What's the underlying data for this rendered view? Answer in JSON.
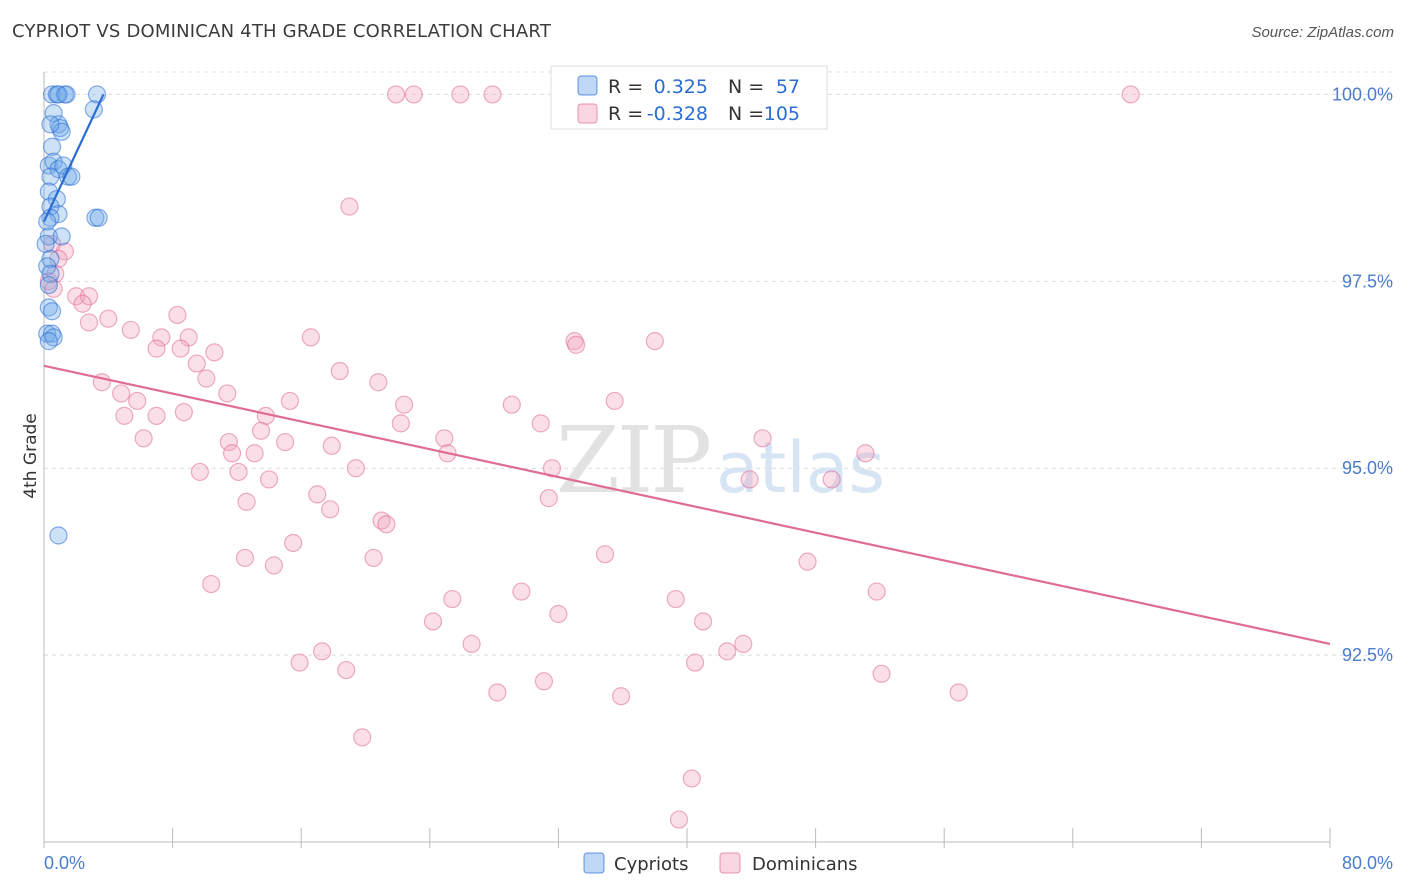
{
  "header": {
    "title": "CYPRIOT VS DOMINICAN 4TH GRADE CORRELATION CHART",
    "source": "Source: ZipAtlas.com"
  },
  "colors": {
    "cypriots": "#6fa8e8",
    "cypriots_line": "#2a6dd4",
    "dominicans": "#f2a3bd",
    "dominicans_line": "#e06b96",
    "tick_label": "#4a7cc9",
    "grid": "#dcdcdc"
  },
  "chart_data": {
    "type": "scatter",
    "title": "CYPRIOT VS DOMINICAN 4TH GRADE CORRELATION CHART",
    "xlabel": "",
    "ylabel": "4th Grade",
    "xlim": [
      0,
      80
    ],
    "ylim": [
      90.0,
      100.3
    ],
    "x_tick_labels": [
      "0.0%",
      "80.0%"
    ],
    "y_ticks": [
      92.5,
      95.0,
      97.5,
      100.0
    ],
    "y_tick_labels": [
      "92.5%",
      "95.0%",
      "97.5%",
      "100.0%"
    ],
    "grid": true,
    "legend_position": "top-center",
    "watermark": "ZIPatlas",
    "stats": [
      {
        "name": "Cypriots",
        "R": "0.325",
        "N": "57"
      },
      {
        "name": "Dominicans",
        "R": "-0.328",
        "N": "105"
      }
    ],
    "series": [
      {
        "name": "Cypriots",
        "trend": {
          "x": [
            0.0,
            3.7
          ],
          "y": [
            98.3,
            100.0
          ]
        },
        "points": [
          [
            0.5,
            100.0
          ],
          [
            0.8,
            100.0
          ],
          [
            1.3,
            100.0
          ],
          [
            1.4,
            100.0
          ],
          [
            0.9,
            100.0
          ],
          [
            3.3,
            100.0
          ],
          [
            3.1,
            99.8
          ],
          [
            0.6,
            99.75
          ],
          [
            0.9,
            99.6
          ],
          [
            1.0,
            99.55
          ],
          [
            1.1,
            99.5
          ],
          [
            0.4,
            99.6
          ],
          [
            0.5,
            99.3
          ],
          [
            0.3,
            99.05
          ],
          [
            0.6,
            99.1
          ],
          [
            0.9,
            99.0
          ],
          [
            1.2,
            99.05
          ],
          [
            1.5,
            98.9
          ],
          [
            1.7,
            98.9
          ],
          [
            0.4,
            98.9
          ],
          [
            0.3,
            98.7
          ],
          [
            0.8,
            98.6
          ],
          [
            0.4,
            98.5
          ],
          [
            0.9,
            98.4
          ],
          [
            0.4,
            98.35
          ],
          [
            0.2,
            98.3
          ],
          [
            3.2,
            98.35
          ],
          [
            3.4,
            98.35
          ],
          [
            0.3,
            98.1
          ],
          [
            0.1,
            98.0
          ],
          [
            1.1,
            98.1
          ],
          [
            0.4,
            97.8
          ],
          [
            0.2,
            97.7
          ],
          [
            0.4,
            97.6
          ],
          [
            0.3,
            97.45
          ],
          [
            0.3,
            97.15
          ],
          [
            0.5,
            97.1
          ],
          [
            0.2,
            96.8
          ],
          [
            0.5,
            96.8
          ],
          [
            0.6,
            96.75
          ],
          [
            0.3,
            96.7
          ],
          [
            0.9,
            94.1
          ]
        ]
      },
      {
        "name": "Dominicans",
        "trend": {
          "x": [
            0.0,
            80.0
          ],
          "y": [
            96.37,
            92.65
          ]
        },
        "points": [
          [
            21.9,
            100.0
          ],
          [
            23.0,
            100.0
          ],
          [
            25.9,
            100.0
          ],
          [
            27.9,
            100.0
          ],
          [
            67.6,
            100.0
          ],
          [
            19.0,
            98.5
          ],
          [
            0.5,
            98.0
          ],
          [
            1.3,
            97.9
          ],
          [
            0.9,
            97.8
          ],
          [
            0.7,
            97.6
          ],
          [
            0.3,
            97.5
          ],
          [
            0.6,
            97.4
          ],
          [
            2.0,
            97.3
          ],
          [
            2.8,
            97.3
          ],
          [
            2.4,
            97.2
          ],
          [
            8.3,
            97.05
          ],
          [
            2.8,
            96.95
          ],
          [
            4.0,
            97.0
          ],
          [
            5.4,
            96.85
          ],
          [
            7.3,
            96.75
          ],
          [
            9.0,
            96.75
          ],
          [
            16.6,
            96.75
          ],
          [
            7.0,
            96.6
          ],
          [
            8.5,
            96.6
          ],
          [
            10.6,
            96.55
          ],
          [
            33.0,
            96.7
          ],
          [
            33.1,
            96.65
          ],
          [
            38.0,
            96.7
          ],
          [
            9.5,
            96.4
          ],
          [
            18.4,
            96.3
          ],
          [
            20.8,
            96.15
          ],
          [
            10.1,
            96.2
          ],
          [
            3.6,
            96.15
          ],
          [
            11.4,
            96.0
          ],
          [
            4.8,
            96.0
          ],
          [
            5.8,
            95.9
          ],
          [
            15.3,
            95.9
          ],
          [
            22.4,
            95.85
          ],
          [
            29.1,
            95.85
          ],
          [
            35.5,
            95.9
          ],
          [
            8.7,
            95.75
          ],
          [
            5.0,
            95.7
          ],
          [
            7.0,
            95.7
          ],
          [
            13.8,
            95.7
          ],
          [
            22.2,
            95.6
          ],
          [
            30.9,
            95.6
          ],
          [
            13.5,
            95.5
          ],
          [
            6.2,
            95.4
          ],
          [
            24.9,
            95.4
          ],
          [
            44.7,
            95.4
          ],
          [
            11.5,
            95.35
          ],
          [
            15.0,
            95.35
          ],
          [
            17.9,
            95.3
          ],
          [
            11.7,
            95.2
          ],
          [
            13.1,
            95.2
          ],
          [
            25.1,
            95.2
          ],
          [
            51.1,
            95.2
          ],
          [
            19.4,
            95.0
          ],
          [
            31.6,
            95.0
          ],
          [
            9.7,
            94.95
          ],
          [
            12.1,
            94.95
          ],
          [
            14.0,
            94.85
          ],
          [
            43.9,
            94.85
          ],
          [
            49.0,
            94.85
          ],
          [
            17.0,
            94.65
          ],
          [
            31.4,
            94.6
          ],
          [
            12.6,
            94.55
          ],
          [
            17.8,
            94.45
          ],
          [
            21.0,
            94.3
          ],
          [
            21.3,
            94.25
          ],
          [
            15.5,
            94.0
          ],
          [
            12.5,
            93.8
          ],
          [
            20.5,
            93.8
          ],
          [
            34.9,
            93.85
          ],
          [
            47.5,
            93.75
          ],
          [
            14.3,
            93.7
          ],
          [
            10.4,
            93.45
          ],
          [
            29.7,
            93.35
          ],
          [
            25.4,
            93.25
          ],
          [
            39.3,
            93.25
          ],
          [
            51.8,
            93.35
          ],
          [
            32.0,
            93.05
          ],
          [
            24.2,
            92.95
          ],
          [
            41.0,
            92.95
          ],
          [
            26.6,
            92.65
          ],
          [
            43.5,
            92.65
          ],
          [
            17.3,
            92.55
          ],
          [
            42.5,
            92.55
          ],
          [
            15.9,
            92.4
          ],
          [
            40.5,
            92.4
          ],
          [
            18.8,
            92.3
          ],
          [
            52.1,
            92.25
          ],
          [
            31.1,
            92.15
          ],
          [
            28.2,
            92.0
          ],
          [
            35.9,
            91.95
          ],
          [
            56.9,
            92.0
          ],
          [
            19.8,
            91.4
          ],
          [
            40.3,
            90.85
          ],
          [
            39.5,
            90.3
          ]
        ]
      }
    ]
  },
  "legend": {
    "r_label": "R =",
    "n_label": "N =",
    "rows": [
      {
        "r": "0.325",
        "n": "57"
      },
      {
        "r": "-0.328",
        "n": "105"
      }
    ]
  },
  "bottom_legend": {
    "items": [
      "Cypriots",
      "Dominicans"
    ]
  }
}
